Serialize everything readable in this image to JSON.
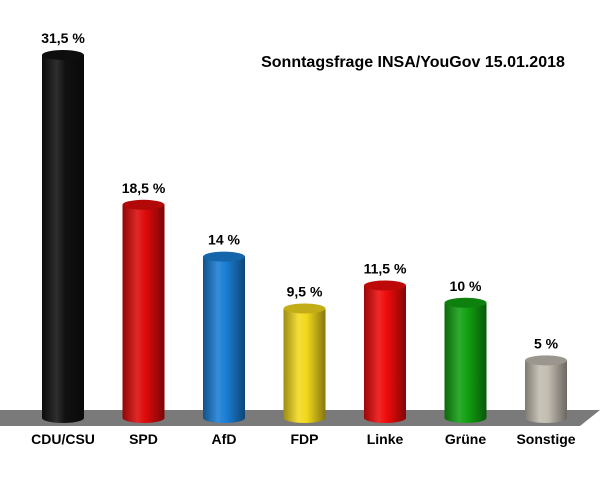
{
  "chart_data": {
    "type": "bar",
    "title": "Sonntagsfrage INSA/YouGov 15.01.2018",
    "categories": [
      "CDU/CSU",
      "SPD",
      "AfD",
      "FDP",
      "Linke",
      "Grüne",
      "Sonstige"
    ],
    "values": [
      31.5,
      18.5,
      14,
      9.5,
      11.5,
      10,
      5
    ],
    "value_labels": [
      "31,5 %",
      "18,5 %",
      "14 %",
      "9,5 %",
      "11,5 %",
      "10 %",
      "5 %"
    ],
    "colors": [
      "#111111",
      "#dd0a0a",
      "#1a7ed4",
      "#f2d81c",
      "#ee0b0b",
      "#12a012",
      "#c2bcb0"
    ],
    "ylim": [
      0,
      31.5
    ],
    "grid": false,
    "legend": "none"
  }
}
